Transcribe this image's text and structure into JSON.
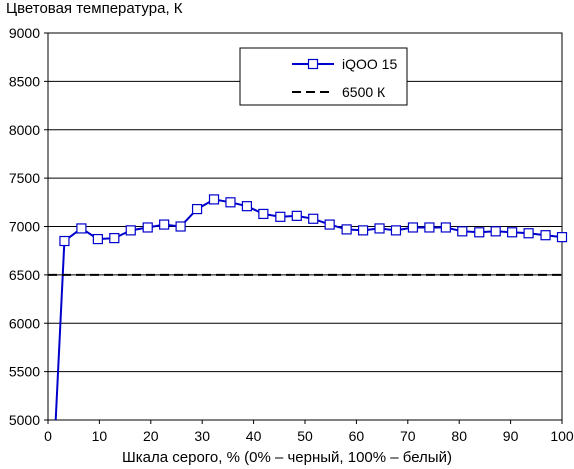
{
  "chart_data": {
    "type": "line",
    "title": "",
    "ylabel": "Цветовая температура, К",
    "xlabel": "Шкала серого, % (0% – черный, 100% – белый)",
    "xlim": [
      0,
      100
    ],
    "ylim": [
      5000,
      9000
    ],
    "xticks": [
      0,
      10,
      20,
      30,
      40,
      50,
      60,
      70,
      80,
      90,
      100
    ],
    "yticks": [
      5000,
      5500,
      6000,
      6500,
      7000,
      7500,
      8000,
      8500,
      9000
    ],
    "grid": "horizontal",
    "legend_position": "top-right",
    "series": [
      {
        "name": "iQOO 15",
        "color": "#0000cc",
        "marker": "square",
        "x": [
          1.5,
          3.2,
          6.5,
          9.7,
          12.9,
          16.1,
          19.4,
          22.6,
          25.8,
          29.0,
          32.3,
          35.5,
          38.7,
          41.9,
          45.2,
          48.4,
          51.6,
          54.8,
          58.1,
          61.3,
          64.5,
          67.7,
          71.0,
          74.2,
          77.4,
          80.6,
          83.9,
          87.1,
          90.3,
          93.5,
          96.8,
          100
        ],
        "values": [
          5000,
          6850,
          6980,
          6870,
          6880,
          6960,
          6990,
          7020,
          7000,
          7180,
          7280,
          7250,
          7210,
          7130,
          7100,
          7110,
          7080,
          7020,
          6970,
          6960,
          6980,
          6960,
          6990,
          6990,
          6990,
          6950,
          6940,
          6950,
          6940,
          6930,
          6910,
          6890
        ],
        "markers_from_index": 1
      },
      {
        "name": "6500 К",
        "color": "#000000",
        "dash": true,
        "x": [
          0,
          100
        ],
        "values": [
          6500,
          6500
        ]
      }
    ]
  }
}
